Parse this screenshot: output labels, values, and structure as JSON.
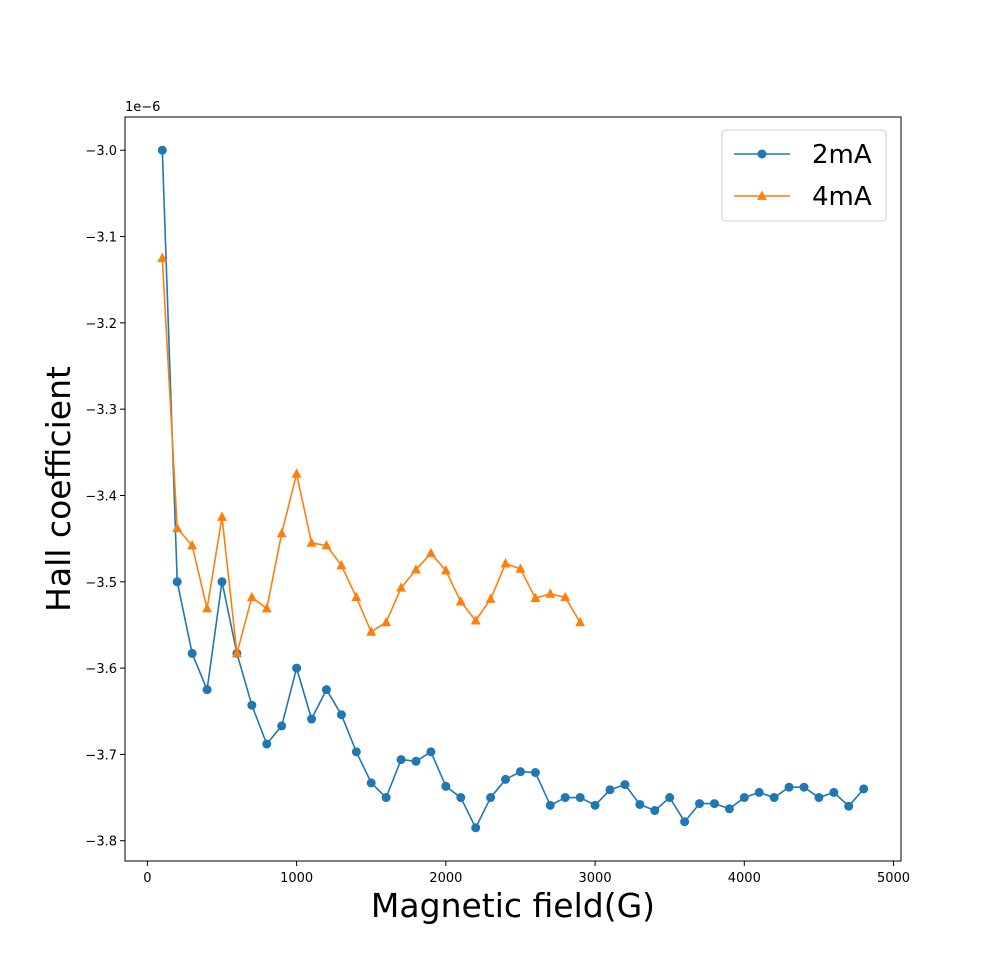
{
  "chart_data": {
    "type": "line",
    "xlabel": "Magnetic field(G)",
    "ylabel": "Hall coefficient",
    "y_offset_label": "1e−6",
    "xlim": [
      -150,
      5050
    ],
    "ylim": [
      -3.8235,
      -2.9615
    ],
    "x_ticks": [
      0,
      1000,
      2000,
      3000,
      4000,
      5000
    ],
    "x_tick_labels": [
      "0",
      "1000",
      "2000",
      "3000",
      "4000",
      "5000"
    ],
    "y_ticks": [
      -3.0,
      -3.1,
      -3.2,
      -3.3,
      -3.4,
      -3.5,
      -3.6,
      -3.7,
      -3.8
    ],
    "y_tick_labels": [
      "−3.0",
      "−3.1",
      "−3.2",
      "−3.3",
      "−3.4",
      "−3.5",
      "−3.6",
      "−3.7",
      "−3.8"
    ],
    "grid": false,
    "legend_position": "top-right",
    "series": [
      {
        "name": "2mA",
        "color": "#1f77b4",
        "marker": "circle",
        "x": [
          100,
          200,
          300,
          400,
          500,
          600,
          700,
          800,
          900,
          1000,
          1100,
          1200,
          1300,
          1400,
          1500,
          1600,
          1700,
          1800,
          1900,
          2000,
          2100,
          2200,
          2300,
          2400,
          2500,
          2600,
          2700,
          2800,
          2900,
          3000,
          3100,
          3200,
          3300,
          3400,
          3500,
          3600,
          3700,
          3800,
          3900,
          4000,
          4100,
          4200,
          4300,
          4400,
          4500,
          4600,
          4700,
          4800
        ],
        "values": [
          -3.0,
          -3.5,
          -3.583,
          -3.625,
          -3.5,
          -3.583,
          -3.643,
          -3.688,
          -3.667,
          -3.6,
          -3.659,
          -3.625,
          -3.654,
          -3.697,
          -3.733,
          -3.75,
          -3.706,
          -3.708,
          -3.697,
          -3.737,
          -3.75,
          -3.785,
          -3.75,
          -3.729,
          -3.72,
          -3.721,
          -3.759,
          -3.75,
          -3.75,
          -3.759,
          -3.741,
          -3.735,
          -3.758,
          -3.765,
          -3.75,
          -3.778,
          -3.757,
          -3.757,
          -3.763,
          -3.75,
          -3.744,
          -3.75,
          -3.738,
          -3.738,
          -3.75,
          -3.744,
          -3.76,
          -3.74
        ]
      },
      {
        "name": "4mA",
        "color": "#ff7f0e",
        "marker": "triangle",
        "x": [
          100,
          200,
          300,
          400,
          500,
          600,
          700,
          800,
          900,
          1000,
          1100,
          1200,
          1300,
          1400,
          1500,
          1600,
          1700,
          1800,
          1900,
          2000,
          2100,
          2200,
          2300,
          2400,
          2500,
          2600,
          2700,
          2800,
          2900
        ],
        "values": [
          -3.125,
          -3.438,
          -3.458,
          -3.531,
          -3.425,
          -3.583,
          -3.518,
          -3.531,
          -3.444,
          -3.375,
          -3.455,
          -3.458,
          -3.481,
          -3.518,
          -3.558,
          -3.547,
          -3.507,
          -3.486,
          -3.467,
          -3.487,
          -3.523,
          -3.545,
          -3.52,
          -3.479,
          -3.485,
          -3.519,
          -3.514,
          -3.518,
          -3.547
        ]
      }
    ]
  }
}
